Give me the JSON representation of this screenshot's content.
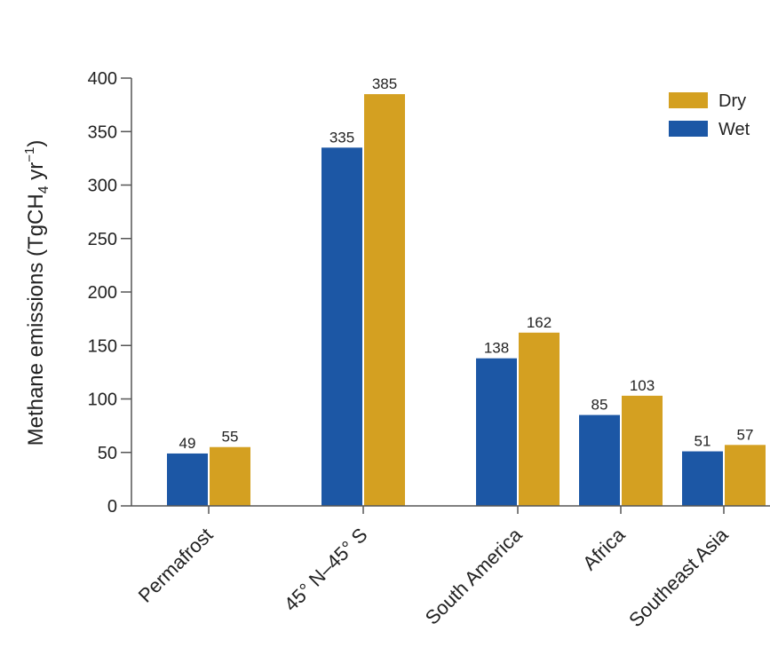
{
  "chart_data": {
    "type": "bar",
    "title": "",
    "xlabel": "",
    "ylabel": {
      "prefix": "Methane emissions (TgCH",
      "sub": "4",
      "mid": " yr",
      "sup": "−1",
      "suffix": ")"
    },
    "ylim": [
      0,
      400
    ],
    "yticks": [
      0,
      50,
      100,
      150,
      200,
      250,
      300,
      350,
      400
    ],
    "categories": [
      "Permafrost",
      "45° N–45° S",
      "South America",
      "Africa",
      "Southeast Asia"
    ],
    "series": [
      {
        "name": "Wet",
        "color": "#1c57a5",
        "values": [
          49,
          335,
          138,
          85,
          51
        ]
      },
      {
        "name": "Dry",
        "color": "#d4a021",
        "values": [
          55,
          385,
          162,
          103,
          57
        ]
      }
    ],
    "legend": {
      "placement": "top-right",
      "order": [
        "Dry",
        "Wet"
      ]
    },
    "grid": false
  }
}
